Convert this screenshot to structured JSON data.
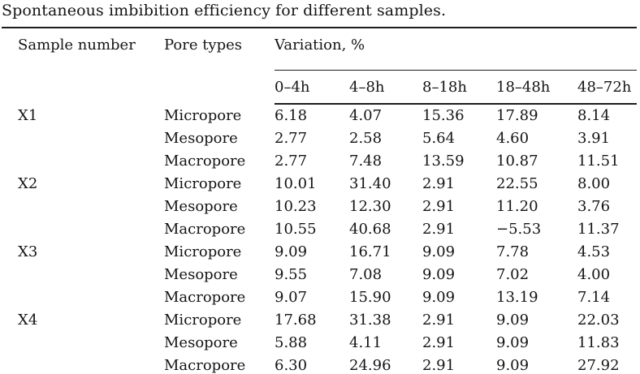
{
  "page": {
    "title": "Spontaneous imbibition efficiency for different samples."
  },
  "colors": {
    "background": "#ffffff",
    "text": "#141414",
    "rule": "#1c1c1c"
  },
  "table": {
    "headers": {
      "sample_number": "Sample number",
      "pore_types": "Pore types",
      "variation": "Variation, %"
    },
    "time_columns": [
      "0–4h",
      "4–8h",
      "8–18h",
      "18–48h",
      "48–72h"
    ],
    "groups": [
      {
        "sample": "X1",
        "rows": [
          {
            "pore_type": "Micropore",
            "values": [
              "6.18",
              "4.07",
              "15.36",
              "17.89",
              "8.14"
            ]
          },
          {
            "pore_type": "Mesopore",
            "values": [
              "2.77",
              "2.58",
              "5.64",
              "4.60",
              "3.91"
            ]
          },
          {
            "pore_type": "Macropore",
            "values": [
              "2.77",
              "7.48",
              "13.59",
              "10.87",
              "11.51"
            ]
          }
        ]
      },
      {
        "sample": "X2",
        "rows": [
          {
            "pore_type": "Micropore",
            "values": [
              "10.01",
              "31.40",
              "2.91",
              "22.55",
              "8.00"
            ]
          },
          {
            "pore_type": "Mesopore",
            "values": [
              "10.23",
              "12.30",
              "2.91",
              "11.20",
              "3.76"
            ]
          },
          {
            "pore_type": "Macropore",
            "values": [
              "10.55",
              "40.68",
              "2.91",
              "−5.53",
              "11.37"
            ]
          }
        ]
      },
      {
        "sample": "X3",
        "rows": [
          {
            "pore_type": "Micropore",
            "values": [
              "9.09",
              "16.71",
              "9.09",
              "7.78",
              "4.53"
            ]
          },
          {
            "pore_type": "Mesopore",
            "values": [
              "9.55",
              "7.08",
              "9.09",
              "7.02",
              "4.00"
            ]
          },
          {
            "pore_type": "Macropore",
            "values": [
              "9.07",
              "15.90",
              "9.09",
              "13.19",
              "7.14"
            ]
          }
        ]
      },
      {
        "sample": "X4",
        "rows": [
          {
            "pore_type": "Micropore",
            "values": [
              "17.68",
              "31.38",
              "2.91",
              "9.09",
              "22.03"
            ]
          },
          {
            "pore_type": "Mesopore",
            "values": [
              "5.88",
              "4.11",
              "2.91",
              "9.09",
              "11.83"
            ]
          },
          {
            "pore_type": "Macropore",
            "values": [
              "6.30",
              "24.96",
              "2.91",
              "9.09",
              "27.92"
            ]
          }
        ]
      }
    ]
  }
}
